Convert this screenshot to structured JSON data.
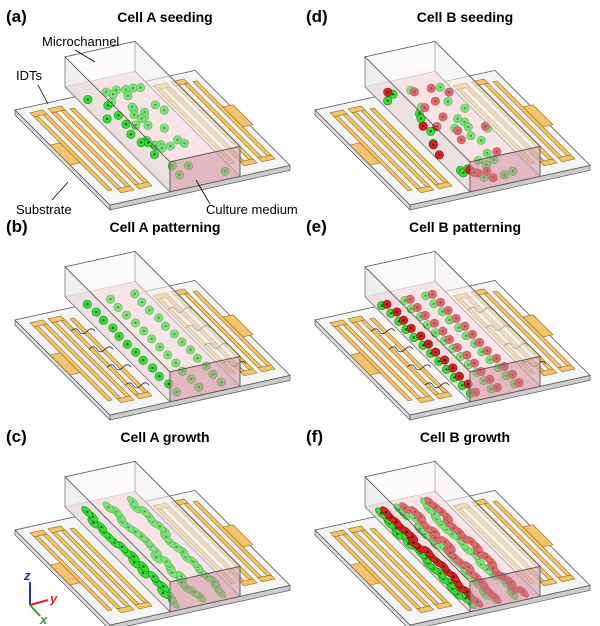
{
  "panels": [
    {
      "letter": "(a)",
      "title": "Cell A seeding"
    },
    {
      "letter": "(b)",
      "title": "Cell A patterning"
    },
    {
      "letter": "(c)",
      "title": "Cell A growth"
    },
    {
      "letter": "(d)",
      "title": "Cell B seeding"
    },
    {
      "letter": "(e)",
      "title": "Cell B patterning"
    },
    {
      "letter": "(f)",
      "title": "Cell B growth"
    }
  ],
  "annotations": {
    "microchannel": "Microchannel",
    "idts": "IDTs",
    "substrate": "Substrate",
    "culture_medium": "Culture medium"
  },
  "axes": {
    "z": "z",
    "y": "y",
    "x": "x"
  }
}
